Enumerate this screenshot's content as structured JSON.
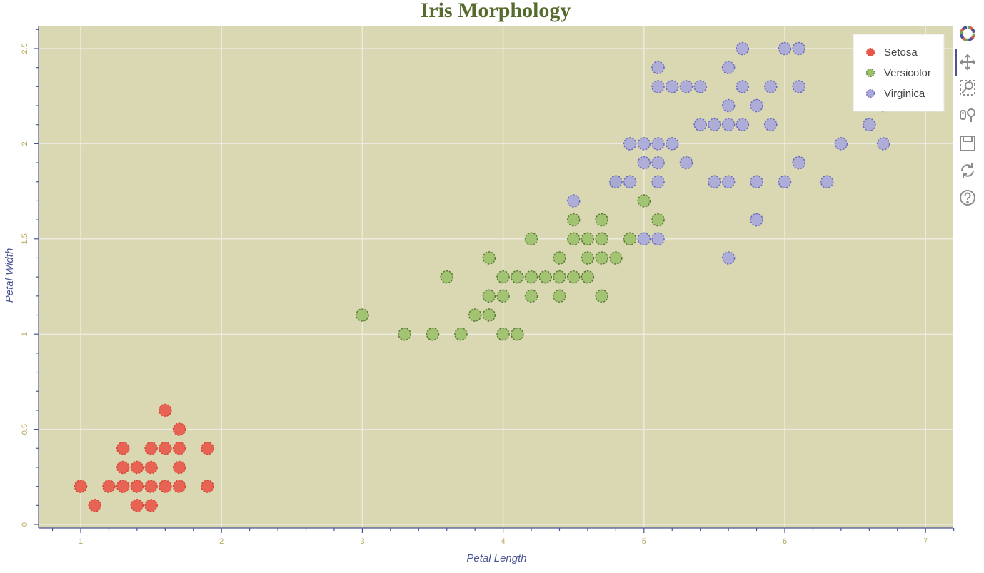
{
  "chart_data": {
    "type": "scatter",
    "title": "Iris Morphology",
    "xlabel": "Petal Length",
    "ylabel": "Petal Width",
    "xlim": [
      0.7,
      7.2
    ],
    "ylim": [
      -0.01,
      2.6
    ],
    "xticks": [
      "1",
      "2",
      "3",
      "4",
      "5",
      "6",
      "7"
    ],
    "yticks": [
      "0",
      "0.5",
      "1",
      "1.5",
      "2",
      "2.5"
    ],
    "grid": true,
    "legend_position": "top-right",
    "background_color": "#d9d8b3",
    "series": [
      {
        "name": "Setosa",
        "color": "#e8584a",
        "points": [
          [
            1.0,
            0.2
          ],
          [
            1.1,
            0.1
          ],
          [
            1.2,
            0.2
          ],
          [
            1.3,
            0.2
          ],
          [
            1.3,
            0.3
          ],
          [
            1.3,
            0.4
          ],
          [
            1.4,
            0.1
          ],
          [
            1.4,
            0.2
          ],
          [
            1.4,
            0.3
          ],
          [
            1.5,
            0.1
          ],
          [
            1.5,
            0.2
          ],
          [
            1.5,
            0.3
          ],
          [
            1.5,
            0.4
          ],
          [
            1.6,
            0.2
          ],
          [
            1.6,
            0.4
          ],
          [
            1.6,
            0.6
          ],
          [
            1.7,
            0.2
          ],
          [
            1.7,
            0.3
          ],
          [
            1.7,
            0.4
          ],
          [
            1.7,
            0.5
          ],
          [
            1.9,
            0.2
          ],
          [
            1.9,
            0.4
          ]
        ]
      },
      {
        "name": "Versicolor",
        "color": "#9ac16a",
        "points": [
          [
            3.0,
            1.1
          ],
          [
            3.3,
            1.0
          ],
          [
            3.5,
            1.0
          ],
          [
            3.6,
            1.3
          ],
          [
            3.7,
            1.0
          ],
          [
            3.8,
            1.1
          ],
          [
            3.9,
            1.1
          ],
          [
            3.9,
            1.2
          ],
          [
            3.9,
            1.4
          ],
          [
            4.0,
            1.0
          ],
          [
            4.0,
            1.2
          ],
          [
            4.0,
            1.3
          ],
          [
            4.1,
            1.0
          ],
          [
            4.1,
            1.3
          ],
          [
            4.2,
            1.2
          ],
          [
            4.2,
            1.3
          ],
          [
            4.2,
            1.5
          ],
          [
            4.3,
            1.3
          ],
          [
            4.4,
            1.2
          ],
          [
            4.4,
            1.3
          ],
          [
            4.4,
            1.4
          ],
          [
            4.5,
            1.3
          ],
          [
            4.5,
            1.5
          ],
          [
            4.5,
            1.6
          ],
          [
            4.6,
            1.3
          ],
          [
            4.6,
            1.4
          ],
          [
            4.6,
            1.5
          ],
          [
            4.7,
            1.2
          ],
          [
            4.7,
            1.4
          ],
          [
            4.7,
            1.5
          ],
          [
            4.7,
            1.6
          ],
          [
            4.8,
            1.4
          ],
          [
            4.8,
            1.8
          ],
          [
            4.9,
            1.5
          ],
          [
            5.0,
            1.7
          ],
          [
            5.1,
            1.6
          ]
        ]
      },
      {
        "name": "Virginica",
        "color": "#a8a8dc",
        "points": [
          [
            4.5,
            1.7
          ],
          [
            4.8,
            1.8
          ],
          [
            4.9,
            1.8
          ],
          [
            4.9,
            2.0
          ],
          [
            5.0,
            1.5
          ],
          [
            5.0,
            1.9
          ],
          [
            5.0,
            2.0
          ],
          [
            5.1,
            1.5
          ],
          [
            5.1,
            1.8
          ],
          [
            5.1,
            1.9
          ],
          [
            5.1,
            2.0
          ],
          [
            5.1,
            2.3
          ],
          [
            5.1,
            2.4
          ],
          [
            5.2,
            2.0
          ],
          [
            5.2,
            2.3
          ],
          [
            5.3,
            1.9
          ],
          [
            5.3,
            2.3
          ],
          [
            5.4,
            2.1
          ],
          [
            5.4,
            2.3
          ],
          [
            5.5,
            1.8
          ],
          [
            5.5,
            2.1
          ],
          [
            5.6,
            1.4
          ],
          [
            5.6,
            1.8
          ],
          [
            5.6,
            2.1
          ],
          [
            5.6,
            2.2
          ],
          [
            5.6,
            2.4
          ],
          [
            5.7,
            2.1
          ],
          [
            5.7,
            2.3
          ],
          [
            5.7,
            2.5
          ],
          [
            5.8,
            1.6
          ],
          [
            5.8,
            1.8
          ],
          [
            5.8,
            2.2
          ],
          [
            5.9,
            2.1
          ],
          [
            5.9,
            2.3
          ],
          [
            6.0,
            1.8
          ],
          [
            6.0,
            2.5
          ],
          [
            6.1,
            1.9
          ],
          [
            6.1,
            2.3
          ],
          [
            6.1,
            2.5
          ],
          [
            6.3,
            1.8
          ],
          [
            6.4,
            2.0
          ],
          [
            6.6,
            2.1
          ],
          [
            6.7,
            2.0
          ],
          [
            6.7,
            2.2
          ]
        ]
      }
    ]
  },
  "toolbar": {
    "tools": [
      {
        "icon": "bokeh-logo-icon",
        "name": "bokeh-logo"
      },
      {
        "icon": "pan-icon",
        "name": "pan-tool"
      },
      {
        "icon": "box-zoom-icon",
        "name": "box-zoom-tool"
      },
      {
        "icon": "wheel-zoom-icon",
        "name": "wheel-zoom-tool"
      },
      {
        "icon": "save-icon",
        "name": "save-tool"
      },
      {
        "icon": "reset-icon",
        "name": "reset-tool"
      },
      {
        "icon": "help-icon",
        "name": "help-tool"
      }
    ],
    "active_tool": "pan-tool"
  }
}
